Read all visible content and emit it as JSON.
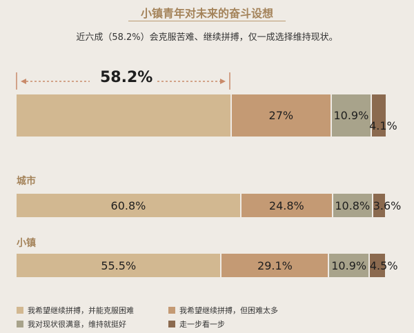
{
  "header": {
    "title": "小镇青年对未来的奋斗设想",
    "subtitle": "近六成（58.2%）会克服苦难、继续拼搏，仅一成选择维持现状。"
  },
  "colors": {
    "c1": "#d2b891",
    "c2": "#c49a74",
    "c3": "#a8a38b",
    "c4": "#8b6a4f"
  },
  "chart_data": {
    "type": "bar",
    "orientation": "horizontal-stacked-100",
    "annotation": "58.2%",
    "series": [
      {
        "name": "我希望继续拼搏，并能克服困难",
        "color_key": "c1"
      },
      {
        "name": "我希望继续拼搏，但困难太多",
        "color_key": "c2"
      },
      {
        "name": "我对现状很满意，维持就挺好",
        "color_key": "c3"
      },
      {
        "name": "走一步看一步",
        "color_key": "c4"
      }
    ],
    "groups": [
      {
        "label": "",
        "values": [
          58.2,
          27,
          10.9,
          4.1
        ],
        "labels": [
          "",
          "27%",
          "10.9%",
          "4.1%"
        ]
      },
      {
        "label": "城市",
        "values": [
          60.8,
          24.8,
          10.8,
          3.6
        ],
        "labels": [
          "60.8%",
          "24.8%",
          "10.8%",
          "3.6%"
        ]
      },
      {
        "label": "小镇",
        "values": [
          55.5,
          29.1,
          10.9,
          4.5
        ],
        "labels": [
          "55.5%",
          "29.1%",
          "10.9%",
          "4.5%"
        ]
      }
    ]
  }
}
